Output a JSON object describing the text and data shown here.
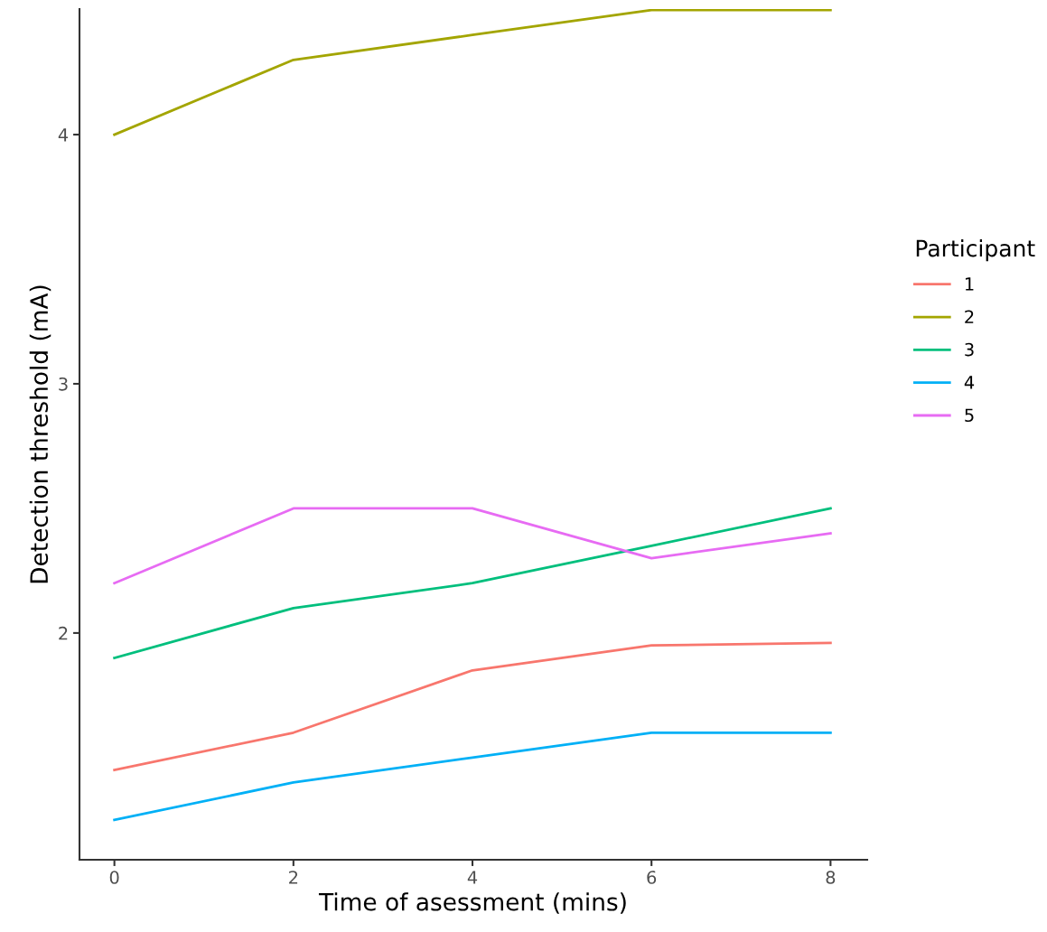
{
  "chart_data": {
    "type": "line",
    "xlabel": "Time of asessment (mins)",
    "ylabel": "Detection threshold (mA)",
    "legend_title": "Participant",
    "legend": "right",
    "grid": false,
    "marker": "none",
    "line_style": "solid",
    "x": [
      0,
      2,
      4,
      6,
      8
    ],
    "series": [
      {
        "name": "1",
        "color": "#f8766d",
        "values": [
          1.45,
          1.6,
          1.85,
          1.95,
          1.96
        ]
      },
      {
        "name": "2",
        "color": "#a3a500",
        "values": [
          4.0,
          4.3,
          4.4,
          4.5,
          4.5
        ]
      },
      {
        "name": "3",
        "color": "#00bf7d",
        "values": [
          1.9,
          2.1,
          2.2,
          2.35,
          2.5
        ]
      },
      {
        "name": "4",
        "color": "#00b0f6",
        "values": [
          1.25,
          1.4,
          1.5,
          1.6,
          1.6
        ]
      },
      {
        "name": "5",
        "color": "#e76bf3",
        "values": [
          2.2,
          2.5,
          2.5,
          2.3,
          2.4
        ]
      }
    ],
    "xlim": [
      -0.39,
      8.41
    ],
    "ylim": [
      1.09,
      4.504
    ],
    "xticks": [
      0,
      2,
      4,
      6,
      8
    ],
    "yticks": [
      2,
      3,
      4
    ]
  }
}
